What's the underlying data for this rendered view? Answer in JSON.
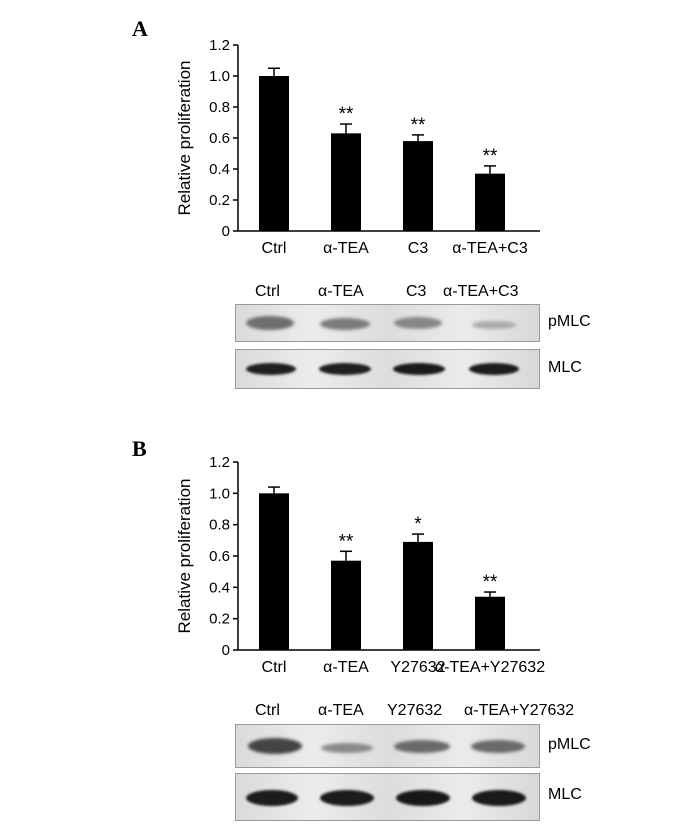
{
  "panels": [
    {
      "letter": "A",
      "blot_lanes": [
        "Ctrl",
        "α-TEA",
        "C3",
        "α-TEA+C3"
      ],
      "blot_rows": [
        "pMLC",
        "MLC"
      ]
    },
    {
      "letter": "B",
      "blot_lanes": [
        "Ctrl",
        "α-TEA",
        "Y27632",
        "α-TEA+Y27632"
      ],
      "blot_rows": [
        "pMLC",
        "MLC"
      ]
    }
  ],
  "chart_data": [
    {
      "type": "bar",
      "categories": [
        "Ctrl",
        "α-TEA",
        "C3",
        "α-TEA+C3"
      ],
      "values": [
        1.0,
        0.63,
        0.58,
        0.37
      ],
      "errors": [
        0.05,
        0.06,
        0.04,
        0.05
      ],
      "significance": [
        "",
        "**",
        "**",
        "**"
      ],
      "ylabel": "Relative proliferation",
      "xlabel": "",
      "ylim": [
        0,
        1.2
      ],
      "yticks": [
        "0",
        "0.2",
        "0.4",
        "0.6",
        "0.8",
        "1.0",
        "1.2"
      ],
      "bar_color": "#000000",
      "grid": false
    },
    {
      "type": "bar",
      "categories": [
        "Ctrl",
        "α-TEA",
        "Y27632",
        "α-TEA+Y27632"
      ],
      "values": [
        1.0,
        0.57,
        0.69,
        0.34
      ],
      "errors": [
        0.04,
        0.06,
        0.05,
        0.03
      ],
      "significance": [
        "",
        "**",
        "*",
        "**"
      ],
      "ylabel": "Relative proliferation",
      "xlabel": "",
      "ylim": [
        0,
        1.2
      ],
      "yticks": [
        "0",
        "0.2",
        "0.4",
        "0.6",
        "0.8",
        "1.0",
        "1.2"
      ],
      "bar_color": "#000000",
      "grid": false
    }
  ]
}
